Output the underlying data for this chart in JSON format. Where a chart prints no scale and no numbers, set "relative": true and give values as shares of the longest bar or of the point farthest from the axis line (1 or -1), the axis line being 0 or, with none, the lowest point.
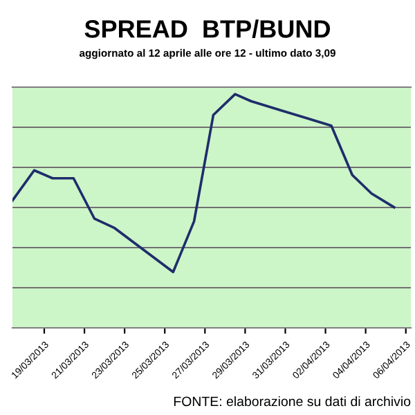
{
  "chart_data": {
    "type": "line",
    "relative": true,
    "title": "SPREAD  BTP/BUND",
    "subtitle": "aggiornato al 12 aprile alle ore 12 - ultimo dato 3,09",
    "annotations": [
      "FONTE: elaborazione su dati di archivio"
    ],
    "x": [
      "2013-03-17T10:00",
      "2013-03-18T12:00",
      "2013-03-19T10:00",
      "2013-03-20T11:00",
      "2013-03-21T12:00",
      "2013-03-22T12:00",
      "2013-03-25T10:00",
      "2013-03-26T11:00",
      "2013-03-27T10:00",
      "2013-03-28T12:00",
      "2013-03-29T07:00",
      "2013-03-30T22:00",
      "2013-03-31T22:00",
      "2013-04-02T07:00",
      "2013-04-03T08:00",
      "2013-04-04T07:00",
      "2013-04-05T10:00"
    ],
    "series": [
      {
        "color": "#1f2d6b",
        "values": [
          0.545,
          0.674,
          0.64,
          0.64,
          0.467,
          0.427,
          0.239,
          0.456,
          0.911,
          1,
          0.97,
          0.927,
          0.901,
          0.865,
          0.654,
          0.575,
          0.516
        ]
      }
    ],
    "xlim": [
      "2013-03-17T10:00",
      "2013-04-06T06:00"
    ],
    "xticks": [
      {
        "value": "2013-03-19",
        "label": "19/03/2013"
      },
      {
        "value": "2013-03-21",
        "label": "21/03/2013"
      },
      {
        "value": "2013-03-23",
        "label": "23/03/2013"
      },
      {
        "value": "2013-03-25",
        "label": "25/03/2013"
      },
      {
        "value": "2013-03-27",
        "label": "27/03/2013"
      },
      {
        "value": "2013-03-29",
        "label": "29/03/2013"
      },
      {
        "value": "2013-03-31",
        "label": "31/03/2013"
      },
      {
        "value": "2013-04-02",
        "label": "02/04/2013"
      },
      {
        "value": "2013-04-04",
        "label": "04/04/2013"
      },
      {
        "value": "2013-04-06",
        "label": "06/04/2013"
      }
    ],
    "tick_labels": "x",
    "grid": "y",
    "marker": "none",
    "line_style": "solid"
  }
}
